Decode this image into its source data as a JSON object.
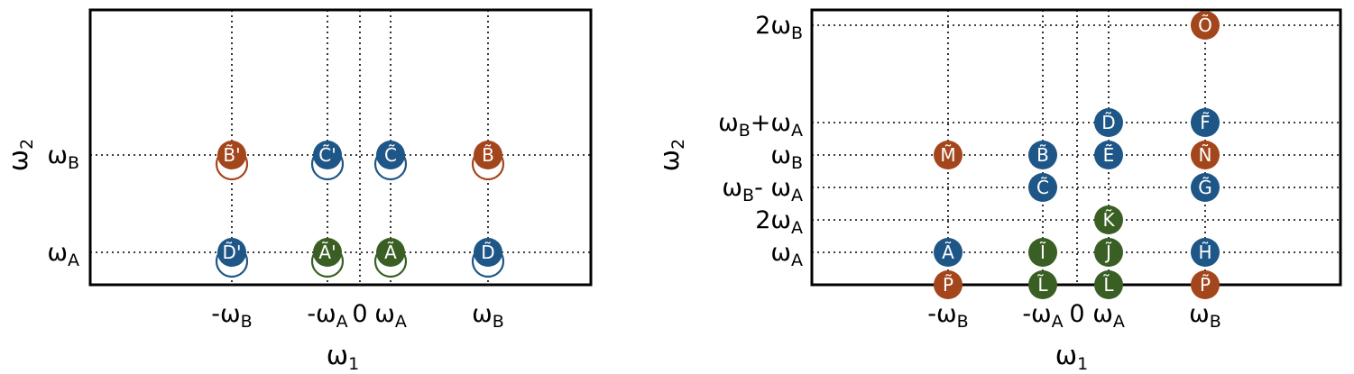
{
  "colors": {
    "blue": "#1e5687",
    "green": "#3a5f24",
    "orange": "#a4461c"
  },
  "panel_left": {
    "x_ticks": [
      {
        "sym": "-ω",
        "sub": "B",
        "v": -2
      },
      {
        "sym": "-ω",
        "sub": "A",
        "v": -1
      },
      {
        "sym": "0",
        "sub": "",
        "v": 0
      },
      {
        "sym": "ω",
        "sub": "A",
        "v": 1
      },
      {
        "sym": "ω",
        "sub": "B",
        "v": 2
      }
    ],
    "y_ticks": [
      {
        "sym": "ω",
        "sub": "A",
        "v": 1
      },
      {
        "sym": "ω",
        "sub": "B",
        "v": 2
      }
    ],
    "xlabel": {
      "sym": "ω",
      "sub": "1"
    },
    "ylabel": {
      "sym": "ω",
      "sub": "2"
    },
    "nodes": [
      {
        "label": "B̃'",
        "x": -2,
        "y": 2,
        "color": "orange",
        "ring": true
      },
      {
        "label": "C̃'",
        "x": -1,
        "y": 2,
        "color": "blue",
        "ring": true
      },
      {
        "label": "C̃",
        "x": 1,
        "y": 2,
        "color": "blue",
        "ring": true
      },
      {
        "label": "B̃",
        "x": 2,
        "y": 2,
        "color": "orange",
        "ring": true
      },
      {
        "label": "D̃'",
        "x": -2,
        "y": 1,
        "color": "blue",
        "ring": true
      },
      {
        "label": "Ã'",
        "x": -1,
        "y": 1,
        "color": "green",
        "ring": true
      },
      {
        "label": "Ã",
        "x": 1,
        "y": 1,
        "color": "green",
        "ring": true
      },
      {
        "label": "D̃",
        "x": 2,
        "y": 1,
        "color": "blue",
        "ring": true
      }
    ]
  },
  "panel_right": {
    "x_ticks": [
      {
        "sym": "-ω",
        "sub": "B",
        "v": -2
      },
      {
        "sym": "-ω",
        "sub": "A",
        "v": -1
      },
      {
        "sym": "0",
        "sub": "",
        "v": 0
      },
      {
        "sym": "ω",
        "sub": "A",
        "v": 1
      },
      {
        "sym": "ω",
        "sub": "B",
        "v": 2
      }
    ],
    "y_ticks": [
      {
        "sym": "2ω",
        "sub": "B",
        "v": 7
      },
      {
        "sym": "ω",
        "sub": "B",
        "extra": "+ω",
        "sub2": "A",
        "v": 5
      },
      {
        "sym": "ω",
        "sub": "B",
        "v": 4
      },
      {
        "sym": "ω",
        "sub": "B",
        "extra": "- ω",
        "sub2": "A",
        "v": 3
      },
      {
        "sym": "2ω",
        "sub": "A",
        "v": 2
      },
      {
        "sym": "ω",
        "sub": "A",
        "v": 1
      }
    ],
    "xlabel": {
      "sym": "ω",
      "sub": "1"
    },
    "ylabel": {
      "sym": "ω",
      "sub": "2"
    },
    "nodes": [
      {
        "label": "Õ",
        "x": 2,
        "y": 7,
        "color": "orange"
      },
      {
        "label": "D̃",
        "x": 1,
        "y": 5,
        "color": "blue"
      },
      {
        "label": "F̃",
        "x": 2,
        "y": 5,
        "color": "blue"
      },
      {
        "label": "M̃",
        "x": -2,
        "y": 4,
        "color": "orange"
      },
      {
        "label": "B̃",
        "x": -1,
        "y": 4,
        "color": "blue"
      },
      {
        "label": "Ẽ",
        "x": 1,
        "y": 4,
        "color": "blue"
      },
      {
        "label": "Ñ",
        "x": 2,
        "y": 4,
        "color": "orange"
      },
      {
        "label": "C̃",
        "x": -1,
        "y": 3,
        "color": "blue"
      },
      {
        "label": "G̃",
        "x": 2,
        "y": 3,
        "color": "blue"
      },
      {
        "label": "K̃",
        "x": 1,
        "y": 2,
        "color": "green"
      },
      {
        "label": "Ã",
        "x": -2,
        "y": 1,
        "color": "blue"
      },
      {
        "label": "Ĩ",
        "x": -1,
        "y": 1,
        "color": "green"
      },
      {
        "label": "J̃",
        "x": 1,
        "y": 1,
        "color": "green"
      },
      {
        "label": "H̃",
        "x": 2,
        "y": 1,
        "color": "blue"
      },
      {
        "label": "P̃",
        "x": -2,
        "y": 0,
        "color": "orange"
      },
      {
        "label": "L̃",
        "x": -1,
        "y": 0,
        "color": "green"
      },
      {
        "label": "L̃",
        "x": 1,
        "y": 0,
        "color": "green"
      },
      {
        "label": "P̃",
        "x": 2,
        "y": 0,
        "color": "orange"
      }
    ]
  }
}
